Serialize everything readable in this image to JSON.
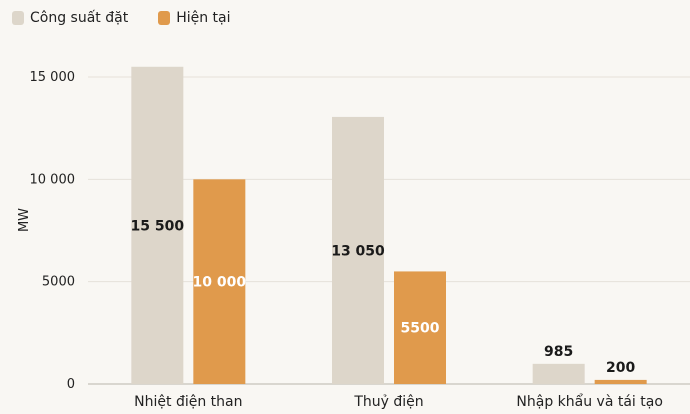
{
  "chart_data": {
    "type": "bar",
    "categories": [
      "Nhiệt điện than",
      "Thuỷ điện",
      "Nhập khẩu và tái tạo"
    ],
    "series": [
      {
        "name": "Công suất đặt",
        "color": "#ddd6ca",
        "values": [
          15500,
          13050,
          985
        ],
        "labels": [
          "15 500",
          "13 050",
          "985"
        ]
      },
      {
        "name": "Hiện tại",
        "color": "#e09a4c",
        "values": [
          10000,
          5500,
          200
        ],
        "labels": [
          "10 000",
          "5500",
          "200"
        ]
      }
    ],
    "ylabel": "MW",
    "ylim": [
      0,
      15000
    ],
    "yticks": [
      0,
      5000,
      10000,
      15000
    ],
    "ytick_labels": [
      "0",
      "5000",
      "10 000",
      "15 000"
    ],
    "grid": true,
    "legend_position": "top-left"
  }
}
